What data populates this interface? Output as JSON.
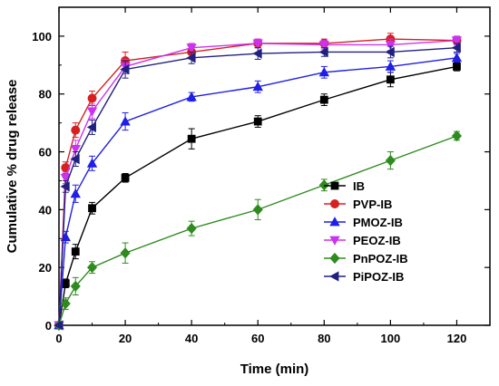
{
  "chart_data": {
    "type": "line",
    "title": "",
    "xlabel": "Time (min)",
    "ylabel": "Cumulative % drug release",
    "xlim": [
      0,
      130
    ],
    "ylim": [
      0,
      110
    ],
    "xticks": [
      0,
      20,
      40,
      60,
      80,
      100,
      120
    ],
    "yticks": [
      0,
      20,
      40,
      60,
      80,
      100
    ],
    "grid": false,
    "legend_position": "bottom-right",
    "x": [
      0,
      2,
      5,
      10,
      20,
      40,
      60,
      80,
      100,
      120
    ],
    "series": [
      {
        "name": "IB",
        "color": "#000000",
        "marker": "square",
        "values": [
          0,
          14.5,
          25.5,
          40.5,
          51,
          64.5,
          70.5,
          78,
          85,
          89.5
        ],
        "errors": [
          0,
          1.5,
          2.5,
          2,
          1.5,
          3.5,
          2,
          2,
          2.5,
          1.5
        ]
      },
      {
        "name": "PVP-IB",
        "color": "#d62020",
        "marker": "circle",
        "values": [
          0,
          54.5,
          67.5,
          78.5,
          91.5,
          94.5,
          97.5,
          97.5,
          99,
          98.5
        ],
        "errors": [
          0,
          2,
          2.5,
          2.5,
          3,
          2,
          1.5,
          1.5,
          2,
          1.5
        ]
      },
      {
        "name": "PMOZ-IB",
        "color": "#1f1fe6",
        "marker": "triangle-up",
        "values": [
          0,
          30.5,
          45.5,
          56,
          70.5,
          79,
          82.5,
          87.5,
          89.5,
          92.5
        ],
        "errors": [
          0,
          2,
          3,
          2.5,
          3,
          1.5,
          2,
          2,
          2,
          1.5
        ]
      },
      {
        "name": "PEOZ-IB",
        "color": "#cc33ee",
        "marker": "triangle-down",
        "values": [
          0,
          51,
          61,
          74,
          89.5,
          96,
          97.5,
          97,
          97,
          98.5
        ],
        "errors": [
          0,
          2,
          3,
          2.5,
          2.5,
          1.5,
          1.5,
          1.5,
          2,
          1.5
        ]
      },
      {
        "name": "PnPOZ-IB",
        "color": "#2e8b1e",
        "marker": "diamond",
        "values": [
          0,
          7.5,
          13.5,
          20,
          25,
          33.5,
          40,
          48.5,
          57,
          65.5
        ],
        "errors": [
          0,
          2,
          3,
          2,
          3.5,
          2.5,
          3.5,
          2,
          3,
          1.5
        ]
      },
      {
        "name": "PiPOZ-IB",
        "color": "#202080",
        "marker": "triangle-left",
        "values": [
          0,
          48,
          57.5,
          68.5,
          88.5,
          92.5,
          94,
          94.5,
          94.5,
          96
        ],
        "errors": [
          0,
          2,
          2.5,
          2.5,
          3,
          2,
          2,
          1.5,
          2,
          1.5
        ]
      }
    ]
  }
}
